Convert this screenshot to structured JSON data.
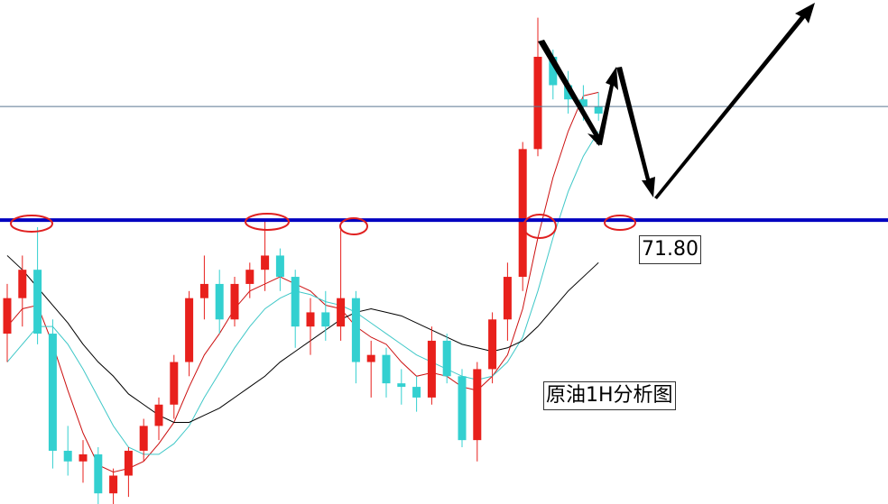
{
  "chart_data": {
    "type": "candlestick",
    "ylim": [
      71.0,
      72.42
    ],
    "up_color": "#e8201c",
    "down_color": "#33d0d0",
    "open": [
      71.48,
      71.58,
      71.66,
      71.48,
      71.15,
      71.12,
      71.14,
      71.03,
      71.08,
      71.15,
      71.22,
      71.28,
      71.4,
      71.58,
      71.62,
      71.52,
      71.62,
      71.66,
      71.7,
      71.64,
      71.5,
      71.54,
      71.5,
      71.58,
      71.4,
      71.42,
      71.34,
      71.33,
      71.3,
      71.46,
      71.36,
      71.18,
      71.38,
      71.52,
      71.64,
      72.0,
      72.26,
      72.18,
      72.14,
      72.12
    ],
    "high": [
      71.62,
      71.7,
      71.78,
      71.52,
      71.22,
      71.18,
      71.16,
      71.1,
      71.16,
      71.24,
      71.3,
      71.42,
      71.6,
      71.7,
      71.66,
      71.64,
      71.68,
      71.8,
      71.72,
      71.66,
      71.58,
      71.6,
      71.78,
      71.6,
      71.46,
      71.44,
      71.38,
      71.36,
      71.5,
      71.48,
      71.38,
      71.4,
      71.54,
      71.68,
      72.02,
      72.37,
      72.28,
      72.22,
      72.18,
      72.16
    ],
    "low": [
      71.4,
      71.5,
      71.45,
      71.1,
      71.08,
      71.06,
      71.0,
      71.0,
      71.02,
      71.12,
      71.18,
      71.24,
      71.36,
      71.52,
      71.48,
      71.5,
      71.58,
      71.6,
      71.6,
      71.44,
      71.42,
      71.46,
      71.46,
      71.34,
      71.3,
      71.3,
      71.28,
      71.26,
      71.28,
      71.34,
      71.16,
      71.12,
      71.34,
      71.46,
      71.6,
      71.98,
      72.14,
      72.1,
      72.08,
      72.08
    ],
    "close": [
      71.58,
      71.66,
      71.48,
      71.15,
      71.12,
      71.14,
      71.03,
      71.08,
      71.15,
      71.22,
      71.28,
      71.4,
      71.58,
      71.62,
      71.52,
      71.62,
      71.66,
      71.7,
      71.64,
      71.5,
      71.54,
      71.5,
      71.58,
      71.4,
      71.42,
      71.34,
      71.33,
      71.3,
      71.46,
      71.36,
      71.18,
      71.38,
      71.52,
      71.64,
      72.0,
      72.26,
      72.18,
      72.14,
      72.12,
      72.1
    ],
    "series": [
      {
        "color": "#cc1010",
        "values": [
          71.5,
          71.55,
          71.56,
          71.45,
          71.32,
          71.2,
          71.11,
          71.09,
          71.1,
          71.12,
          71.17,
          71.23,
          71.33,
          71.42,
          71.48,
          71.55,
          71.6,
          71.62,
          71.64,
          71.62,
          71.6,
          71.56,
          71.55,
          71.5,
          71.47,
          71.45,
          71.4,
          71.36,
          71.37,
          71.36,
          71.33,
          71.32,
          71.36,
          71.42,
          71.55,
          71.75,
          71.92,
          72.05,
          72.15,
          72.16
        ]
      },
      {
        "color": "#40c8c8",
        "values": [
          71.4,
          71.45,
          71.5,
          71.5,
          71.45,
          71.38,
          71.3,
          71.22,
          71.16,
          71.14,
          71.14,
          71.17,
          71.22,
          71.3,
          71.37,
          71.44,
          71.5,
          71.55,
          71.58,
          71.6,
          71.59,
          71.57,
          71.56,
          71.54,
          71.51,
          71.48,
          71.45,
          71.42,
          71.4,
          71.38,
          71.36,
          71.35,
          71.36,
          71.4,
          71.47,
          71.6,
          71.75,
          71.88,
          71.98,
          72.05
        ]
      },
      {
        "color": "#000000",
        "values": [
          71.7,
          71.66,
          71.61,
          71.56,
          71.51,
          71.45,
          71.4,
          71.36,
          71.31,
          71.28,
          71.25,
          71.23,
          71.23,
          71.25,
          71.27,
          71.3,
          71.33,
          71.36,
          71.4,
          71.43,
          71.46,
          71.49,
          71.52,
          71.54,
          71.55,
          71.54,
          71.53,
          71.51,
          71.49,
          71.47,
          71.45,
          71.44,
          71.43,
          71.44,
          71.46,
          71.5,
          71.55,
          71.6,
          71.64,
          71.68
        ]
      }
    ],
    "hlines": [
      {
        "value": 72.12,
        "color": "#5a7890"
      },
      {
        "value": 71.8,
        "label": "71.80",
        "color": "#0000c0"
      }
    ],
    "annotation": "原油1H分析图"
  }
}
